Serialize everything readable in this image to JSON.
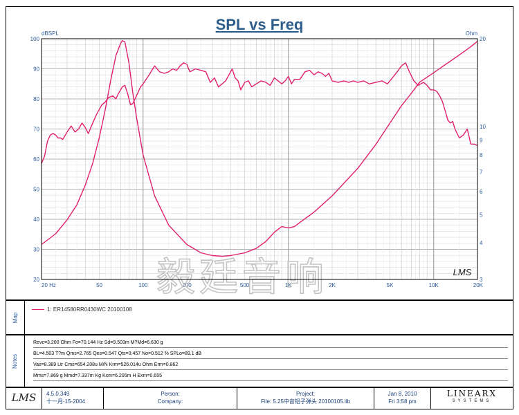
{
  "chart_data": {
    "type": "line",
    "title": "SPL vs Freq",
    "left_axis_unit": "dBSPL",
    "right_axis_unit": "Ohm",
    "xscale": "log",
    "xlim": [
      20,
      20000
    ],
    "ylim": [
      20,
      100
    ],
    "y2lim": [
      3,
      20
    ],
    "x_tick_labels": [
      {
        "f": 20,
        "label": "20 Hz"
      },
      {
        "f": 50,
        "label": "50"
      },
      {
        "f": 100,
        "label": "100"
      },
      {
        "f": 200,
        "label": "200"
      },
      {
        "f": 500,
        "label": "500"
      },
      {
        "f": 1000,
        "label": "1K"
      },
      {
        "f": 2000,
        "label": "2K"
      },
      {
        "f": 5000,
        "label": "5K"
      },
      {
        "f": 10000,
        "label": "10K"
      },
      {
        "f": 20000,
        "label": "20K"
      }
    ],
    "y_ticks": [
      20,
      30,
      40,
      50,
      60,
      70,
      80,
      90,
      100
    ],
    "y2_ticks": [
      3,
      4,
      5,
      6,
      7,
      8,
      9,
      10,
      20
    ],
    "watermark": "毅廷音响",
    "lms_mark": "LMS",
    "series": [
      {
        "name": "SPL",
        "axis": "left",
        "color": "#e0206e",
        "points": [
          [
            20,
            58.5
          ],
          [
            21,
            61
          ],
          [
            22,
            66
          ],
          [
            23,
            68
          ],
          [
            24,
            68.5
          ],
          [
            25,
            68
          ],
          [
            26,
            67
          ],
          [
            27,
            67
          ],
          [
            28,
            66.5
          ],
          [
            30,
            69
          ],
          [
            32,
            71
          ],
          [
            34,
            69
          ],
          [
            36,
            70
          ],
          [
            38,
            72
          ],
          [
            40,
            70.5
          ],
          [
            42,
            68.5
          ],
          [
            45,
            72
          ],
          [
            48,
            75
          ],
          [
            52,
            78
          ],
          [
            55,
            79
          ],
          [
            58,
            80.5
          ],
          [
            62,
            81
          ],
          [
            65,
            80
          ],
          [
            68,
            82
          ],
          [
            72,
            84
          ],
          [
            75,
            84.5
          ],
          [
            78,
            82
          ],
          [
            82,
            78
          ],
          [
            85,
            78.5
          ],
          [
            88,
            80
          ],
          [
            92,
            82
          ],
          [
            96,
            84
          ],
          [
            100,
            85
          ],
          [
            110,
            88
          ],
          [
            120,
            91
          ],
          [
            130,
            89
          ],
          [
            140,
            88.5
          ],
          [
            150,
            89
          ],
          [
            160,
            90
          ],
          [
            170,
            89.5
          ],
          [
            180,
            91
          ],
          [
            190,
            92
          ],
          [
            200,
            91.5
          ],
          [
            210,
            89
          ],
          [
            230,
            90
          ],
          [
            250,
            89.5
          ],
          [
            270,
            89
          ],
          [
            290,
            85.5
          ],
          [
            310,
            87
          ],
          [
            330,
            84
          ],
          [
            350,
            85
          ],
          [
            370,
            86
          ],
          [
            390,
            88
          ],
          [
            410,
            90
          ],
          [
            430,
            87
          ],
          [
            450,
            86
          ],
          [
            470,
            83
          ],
          [
            500,
            85.5
          ],
          [
            530,
            86
          ],
          [
            560,
            84
          ],
          [
            600,
            85
          ],
          [
            650,
            86
          ],
          [
            700,
            85.5
          ],
          [
            750,
            84.5
          ],
          [
            800,
            87
          ],
          [
            850,
            86
          ],
          [
            900,
            85
          ],
          [
            950,
            86
          ],
          [
            1000,
            87.5
          ],
          [
            1050,
            85
          ],
          [
            1100,
            86.5
          ],
          [
            1200,
            86.5
          ],
          [
            1300,
            89
          ],
          [
            1400,
            89.5
          ],
          [
            1500,
            88
          ],
          [
            1600,
            89
          ],
          [
            1700,
            88.5
          ],
          [
            1800,
            87.5
          ],
          [
            1900,
            88.5
          ],
          [
            2000,
            86
          ],
          [
            2200,
            85.5
          ],
          [
            2400,
            86
          ],
          [
            2600,
            85.5
          ],
          [
            2800,
            86
          ],
          [
            3000,
            85.5
          ],
          [
            3300,
            86
          ],
          [
            3600,
            85
          ],
          [
            4000,
            85.5
          ],
          [
            4400,
            86
          ],
          [
            4800,
            85
          ],
          [
            5200,
            87
          ],
          [
            5600,
            89
          ],
          [
            6000,
            91
          ],
          [
            6400,
            92
          ],
          [
            6800,
            89
          ],
          [
            7300,
            86
          ],
          [
            7800,
            84.5
          ],
          [
            8500,
            85.5
          ],
          [
            9000,
            84.5
          ],
          [
            9500,
            83
          ],
          [
            10000,
            83
          ],
          [
            10500,
            82.5
          ],
          [
            11000,
            81
          ],
          [
            11500,
            79
          ],
          [
            12000,
            76
          ],
          [
            12500,
            73
          ],
          [
            13000,
            72
          ],
          [
            13500,
            72.5
          ],
          [
            14000,
            70
          ],
          [
            15000,
            67
          ],
          [
            16000,
            68
          ],
          [
            17000,
            70
          ],
          [
            18000,
            65
          ],
          [
            19000,
            65
          ],
          [
            20000,
            64.5
          ]
        ]
      },
      {
        "name": "Impedance",
        "axis": "right",
        "color": "#e0206e",
        "points": [
          [
            20,
            3.95
          ],
          [
            25,
            4.3
          ],
          [
            30,
            4.8
          ],
          [
            35,
            5.4
          ],
          [
            40,
            6.3
          ],
          [
            45,
            7.5
          ],
          [
            50,
            9.2
          ],
          [
            55,
            11.5
          ],
          [
            60,
            14.5
          ],
          [
            65,
            17.5
          ],
          [
            70,
            19.3
          ],
          [
            72,
            19.7
          ],
          [
            75,
            19.5
          ],
          [
            80,
            16.5
          ],
          [
            85,
            13
          ],
          [
            90,
            10.8
          ],
          [
            100,
            8
          ],
          [
            120,
            5.8
          ],
          [
            150,
            4.6
          ],
          [
            200,
            3.95
          ],
          [
            250,
            3.7
          ],
          [
            300,
            3.62
          ],
          [
            350,
            3.6
          ],
          [
            400,
            3.62
          ],
          [
            500,
            3.7
          ],
          [
            600,
            3.83
          ],
          [
            700,
            4.05
          ],
          [
            800,
            4.35
          ],
          [
            900,
            4.55
          ],
          [
            1000,
            4.5
          ],
          [
            1100,
            4.55
          ],
          [
            1200,
            4.7
          ],
          [
            1500,
            5.1
          ],
          [
            2000,
            5.8
          ],
          [
            3000,
            7.2
          ],
          [
            4000,
            8.7
          ],
          [
            5000,
            10.3
          ],
          [
            6000,
            11.8
          ],
          [
            7000,
            13
          ],
          [
            8000,
            14.2
          ],
          [
            10000,
            15.3
          ],
          [
            12000,
            16.3
          ],
          [
            15000,
            17.6
          ],
          [
            18000,
            18.8
          ],
          [
            20000,
            19.6
          ]
        ]
      }
    ]
  },
  "map": {
    "label": "Map",
    "legend_entry": "1: ER14580RR0430WC   20100108"
  },
  "notes": {
    "label": "Notes",
    "lines": [
      "Revc=3.200 Ohm  Fo=70.144 Hz  Sd=9.503m M?Md=6.630 g",
      "BL=4.503 T?m  Qms=2.765  Qes=0.547  Qts=0.457  No=0.512 %  SPLo=89.1 dB",
      "Vas=8.389 Ltr  Cms=654.208u M/N  Krm=526.014u Ohm  Erm=0.862",
      "Mms=7.869 g  Mmd=7.337m Kg  Kxm=6.205m H  Exm=0.655"
    ]
  },
  "footer": {
    "logo": "LMS",
    "version": "4.5.0.349",
    "date": "十一月-15-2004",
    "person_label": "Person:",
    "company_label": "Company:",
    "project_label": "Project:",
    "file": "File: 5.25中音铝子弹头  20100105.lib",
    "report_date": "Jan  8, 2010",
    "report_time": "Fri  3:58 pm",
    "brand": "LINEARX",
    "brand_sub": "SYSTEMS"
  }
}
